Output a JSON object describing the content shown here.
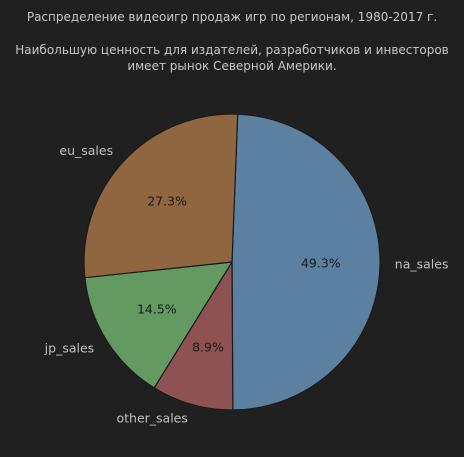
{
  "chart_data": {
    "type": "pie",
    "title_lines": [
      "Распределение видеоигр продаж игр по регионам, 1980-2017 г.",
      "",
      "Наибольшую ценность для издателей, разработчиков и инвесторов",
      "имеет рынок Северной Америки."
    ],
    "slices": [
      {
        "label": "na_sales",
        "value": 49.3,
        "pct_label": "49.3%",
        "color": "#5b80a0"
      },
      {
        "label": "other_sales",
        "value": 8.9,
        "pct_label": "8.9%",
        "color": "#8f5252"
      },
      {
        "label": "jp_sales",
        "value": 14.5,
        "pct_label": "14.5%",
        "color": "#629a62"
      },
      {
        "label": "eu_sales",
        "value": 27.3,
        "pct_label": "27.3%",
        "color": "#8f6640"
      }
    ],
    "start_angle_deg": 87.8,
    "direction": "clockwise",
    "edge_color": "#1a1a1a",
    "legend": "none"
  }
}
